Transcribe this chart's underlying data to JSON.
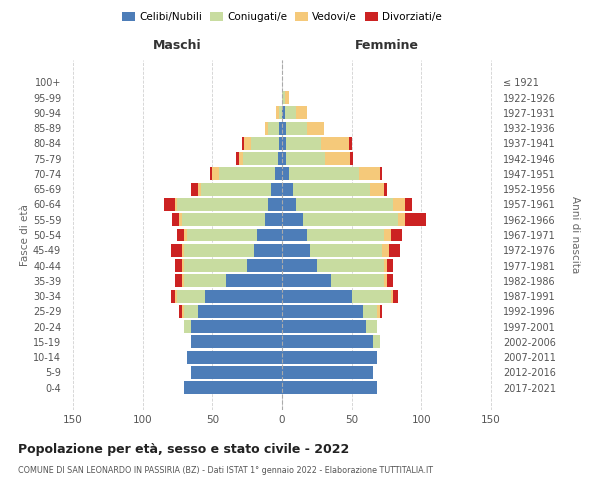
{
  "age_groups": [
    "0-4",
    "5-9",
    "10-14",
    "15-19",
    "20-24",
    "25-29",
    "30-34",
    "35-39",
    "40-44",
    "45-49",
    "50-54",
    "55-59",
    "60-64",
    "65-69",
    "70-74",
    "75-79",
    "80-84",
    "85-89",
    "90-94",
    "95-99",
    "100+"
  ],
  "birth_years": [
    "2017-2021",
    "2012-2016",
    "2007-2011",
    "2002-2006",
    "1997-2001",
    "1992-1996",
    "1987-1991",
    "1982-1986",
    "1977-1981",
    "1972-1976",
    "1967-1971",
    "1962-1966",
    "1957-1961",
    "1952-1956",
    "1947-1951",
    "1942-1946",
    "1937-1941",
    "1932-1936",
    "1927-1931",
    "1922-1926",
    "≤ 1921"
  ],
  "colors": {
    "celibi": "#4d7db8",
    "coniugati": "#c8dca0",
    "vedovi": "#f5c97a",
    "divorziati": "#cc2222"
  },
  "males": {
    "celibi": [
      70,
      65,
      68,
      65,
      65,
      60,
      55,
      40,
      25,
      20,
      18,
      12,
      10,
      8,
      5,
      3,
      2,
      2,
      0,
      0,
      0
    ],
    "coniugati": [
      0,
      0,
      0,
      0,
      5,
      10,
      20,
      30,
      45,
      50,
      50,
      60,
      65,
      50,
      40,
      25,
      20,
      8,
      2,
      0,
      0
    ],
    "vedovi": [
      0,
      0,
      0,
      0,
      0,
      2,
      2,
      2,
      2,
      2,
      2,
      2,
      2,
      2,
      5,
      3,
      5,
      2,
      2,
      0,
      0
    ],
    "divorziati": [
      0,
      0,
      0,
      0,
      0,
      2,
      3,
      5,
      5,
      8,
      5,
      5,
      8,
      5,
      2,
      2,
      2,
      0,
      0,
      0,
      0
    ]
  },
  "females": {
    "nubili": [
      68,
      65,
      68,
      65,
      60,
      58,
      50,
      35,
      25,
      20,
      18,
      15,
      10,
      8,
      5,
      3,
      3,
      3,
      2,
      0,
      0
    ],
    "coniugate": [
      0,
      0,
      0,
      5,
      8,
      10,
      28,
      38,
      48,
      52,
      55,
      68,
      70,
      55,
      50,
      28,
      25,
      15,
      8,
      2,
      0
    ],
    "vedove": [
      0,
      0,
      0,
      0,
      0,
      2,
      2,
      2,
      2,
      5,
      5,
      5,
      8,
      10,
      15,
      18,
      20,
      12,
      8,
      3,
      0
    ],
    "divorziate": [
      0,
      0,
      0,
      0,
      0,
      2,
      3,
      5,
      5,
      8,
      8,
      15,
      5,
      2,
      2,
      2,
      2,
      0,
      0,
      0,
      0
    ]
  },
  "xlim": 155,
  "title": "Popolazione per età, sesso e stato civile - 2022",
  "subtitle": "COMUNE DI SAN LEONARDO IN PASSIRIA (BZ) - Dati ISTAT 1° gennaio 2022 - Elaborazione TUTTITALIA.IT",
  "ylabel_left": "Fasce di età",
  "ylabel_right": "Anni di nascita",
  "label_maschi": "Maschi",
  "label_femmine": "Femmine",
  "legend_labels": [
    "Celibi/Nubili",
    "Coniugati/e",
    "Vedovi/e",
    "Divorziati/e"
  ],
  "bg_color": "#ffffff",
  "grid_color": "#cccccc"
}
